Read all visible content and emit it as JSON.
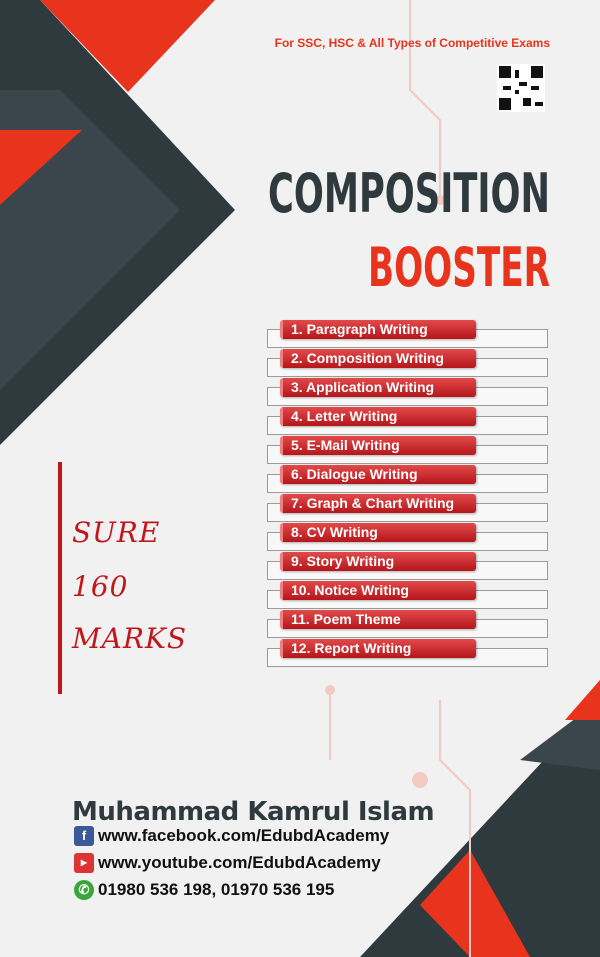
{
  "tagline": "For SSC, HSC & All Types of Competitive Exams",
  "title": {
    "line1": "COMPOSITION",
    "line2": "BOOSTER"
  },
  "colors": {
    "dark": "#2f3a3f",
    "red": "#e8341c",
    "bar_red": "#c0171c"
  },
  "topics": [
    "1. Paragraph Writing",
    "2. Composition Writing",
    "3. Application Writing",
    "4. Letter Writing",
    "5. E-Mail Writing",
    "6. Dialogue Writing",
    "7. Graph & Chart Writing",
    "8. CV Writing",
    "9. Story Writing",
    "10. Notice Writing",
    "11. Poem Theme",
    "12. Report Writing"
  ],
  "promise": {
    "line1": "SURE",
    "line2": "160",
    "line3": "MARKS"
  },
  "author": "Muhammad Kamrul Islam",
  "contacts": {
    "facebook": "www.facebook.com/EdubdAcademy",
    "youtube": "www.youtube.com/EdubdAcademy",
    "phone": "01980 536 198, 01970 536 195"
  },
  "icons": [
    "qr-code-icon",
    "facebook-icon",
    "youtube-icon",
    "phone-icon"
  ]
}
